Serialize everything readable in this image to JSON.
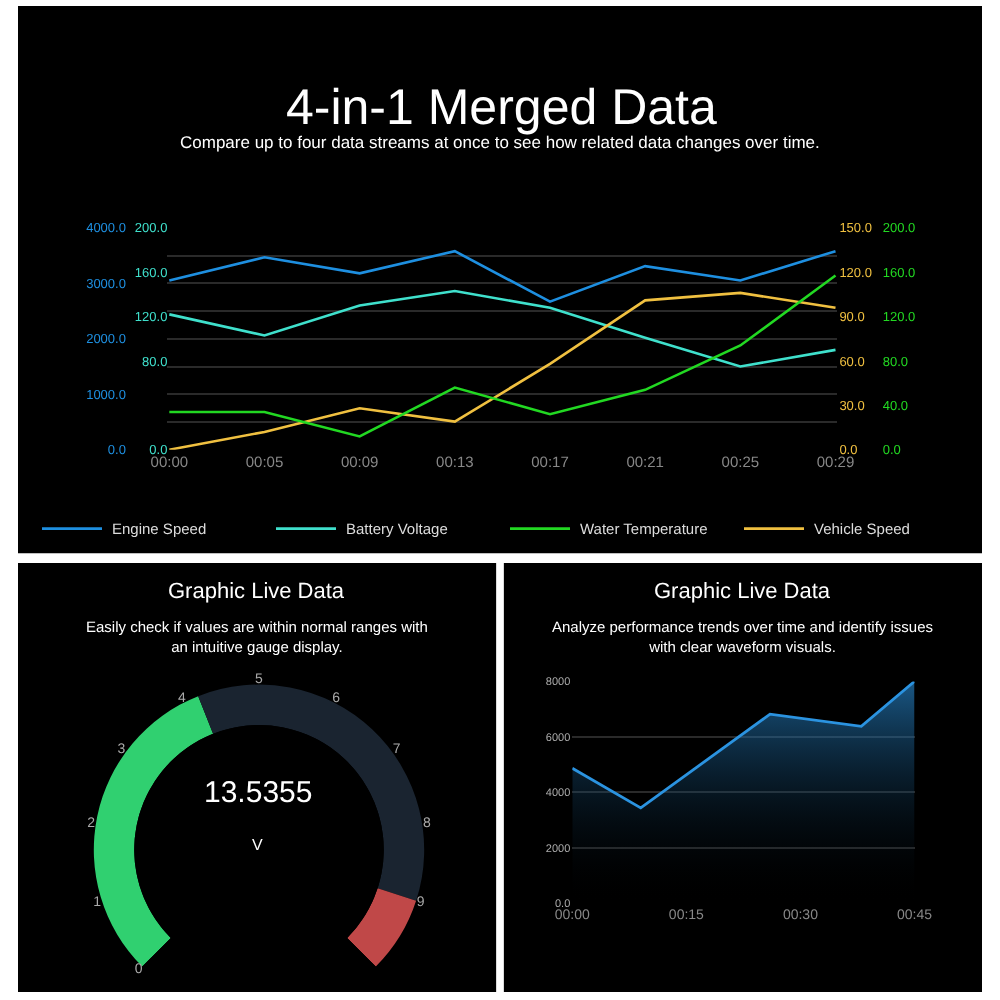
{
  "chart_data": [
    {
      "type": "line",
      "title": "4-in-1 Merged Data",
      "subtitle": "Compare up to four data streams at once to see how related data changes over time.",
      "categories": [
        "00:00",
        "00:05",
        "00:09",
        "00:13",
        "00:17",
        "00:21",
        "00:25",
        "00:29"
      ],
      "series": [
        {
          "name": "Engine Speed",
          "color": "#1e8fe0",
          "values": [
            3050,
            3470,
            3180,
            3580,
            2670,
            3310,
            3050,
            3580
          ]
        },
        {
          "name": "Battery Voltage",
          "color": "#3fe0cc",
          "axis": "y2",
          "values": [
            122,
            103,
            130,
            143,
            128,
            101,
            75,
            90
          ]
        }
      ],
      "ylim": [
        0,
        4000
      ],
      "yticks": [
        {
          "value": 0,
          "label": "0.0"
        },
        {
          "value": 500,
          "label": null
        },
        {
          "value": 1000,
          "label": "1000.0"
        },
        {
          "value": 1500,
          "label": null
        },
        {
          "value": 2000,
          "label": "2000.0"
        },
        {
          "value": 2500,
          "label": null
        },
        {
          "value": 3000,
          "label": "3000.0"
        },
        {
          "value": 3500,
          "label": null
        },
        {
          "value": 4000,
          "label": "4000.0"
        }
      ],
      "y2lim": [
        0,
        200
      ],
      "y2ticks": [
        {
          "value": 0,
          "label": "0.0"
        },
        {
          "value": 80,
          "label": "80.0"
        },
        {
          "value": 120,
          "label": "120.0"
        },
        {
          "value": 160,
          "label": "160.0"
        },
        {
          "value": 200,
          "label": "200.0"
        }
      ],
      "grid": "y",
      "legend": "bottom"
    },
    {
      "type": "line",
      "categories": [
        null,
        null,
        null,
        null,
        null,
        null,
        null,
        null
      ],
      "series": [
        {
          "name": "Water Temperature",
          "color": "#22d822",
          "axis": "y2",
          "values": [
            34,
            34,
            12,
            56,
            32,
            54,
            94,
            157
          ]
        },
        {
          "name": "Vehicle Speed",
          "color": "#f0c040",
          "values": [
            0,
            12,
            28,
            19,
            58,
            101,
            106,
            96
          ]
        }
      ],
      "ylim": [
        0,
        150
      ],
      "yticks": [
        {
          "value": 0,
          "label": "0.0"
        },
        {
          "value": 30,
          "label": "30.0"
        },
        {
          "value": 60,
          "label": "60.0"
        },
        {
          "value": 90,
          "label": "90.0"
        },
        {
          "value": 120,
          "label": "120.0"
        },
        {
          "value": 150,
          "label": "150.0"
        }
      ],
      "y2lim": [
        0,
        200
      ],
      "y2ticks": [
        {
          "value": 0,
          "label": "0.0"
        },
        {
          "value": 40,
          "label": "40.0"
        },
        {
          "value": 80,
          "label": "80.0"
        },
        {
          "value": 120,
          "label": "120.0"
        },
        {
          "value": 160,
          "label": "160.0"
        },
        {
          "value": 200,
          "label": "200.0"
        }
      ],
      "tick_labels": "y",
      "legend": "bottom"
    },
    {
      "type": "donut",
      "title": "Graphic Live Data",
      "subtitle": "Easily check if values are within normal ranges with an intuitive gauge display.",
      "categories": [
        null,
        null,
        null
      ],
      "values": [
        42,
        48,
        10
      ],
      "colors": [
        "#30d070",
        "#1a2430",
        "#c04848"
      ],
      "annotations": [
        "13.5355",
        "V",
        "0",
        "1",
        "2",
        "3",
        "4",
        "5",
        "6",
        "7",
        "8",
        "9"
      ]
    },
    {
      "type": "area",
      "title": "Graphic Live Data",
      "subtitle": "Analyze performance trends over time and identify issues with clear waveform visuals.",
      "x": [
        0,
        9,
        26,
        38,
        45
      ],
      "series": [
        {
          "color": "#2b93e0",
          "values": [
            4870,
            3440,
            6820,
            6380,
            8000
          ]
        }
      ],
      "xlim": [
        0,
        45
      ],
      "xticks": [
        {
          "value": 0,
          "label": "00:00"
        },
        {
          "value": 15,
          "label": "00:15"
        },
        {
          "value": 30,
          "label": "00:30"
        },
        {
          "value": 45,
          "label": "00:45"
        }
      ],
      "ylim": [
        0,
        8000
      ],
      "yticks": [
        {
          "value": 0,
          "label": "0.0"
        },
        2000,
        4000,
        6000,
        8000
      ],
      "grid": "y"
    }
  ]
}
